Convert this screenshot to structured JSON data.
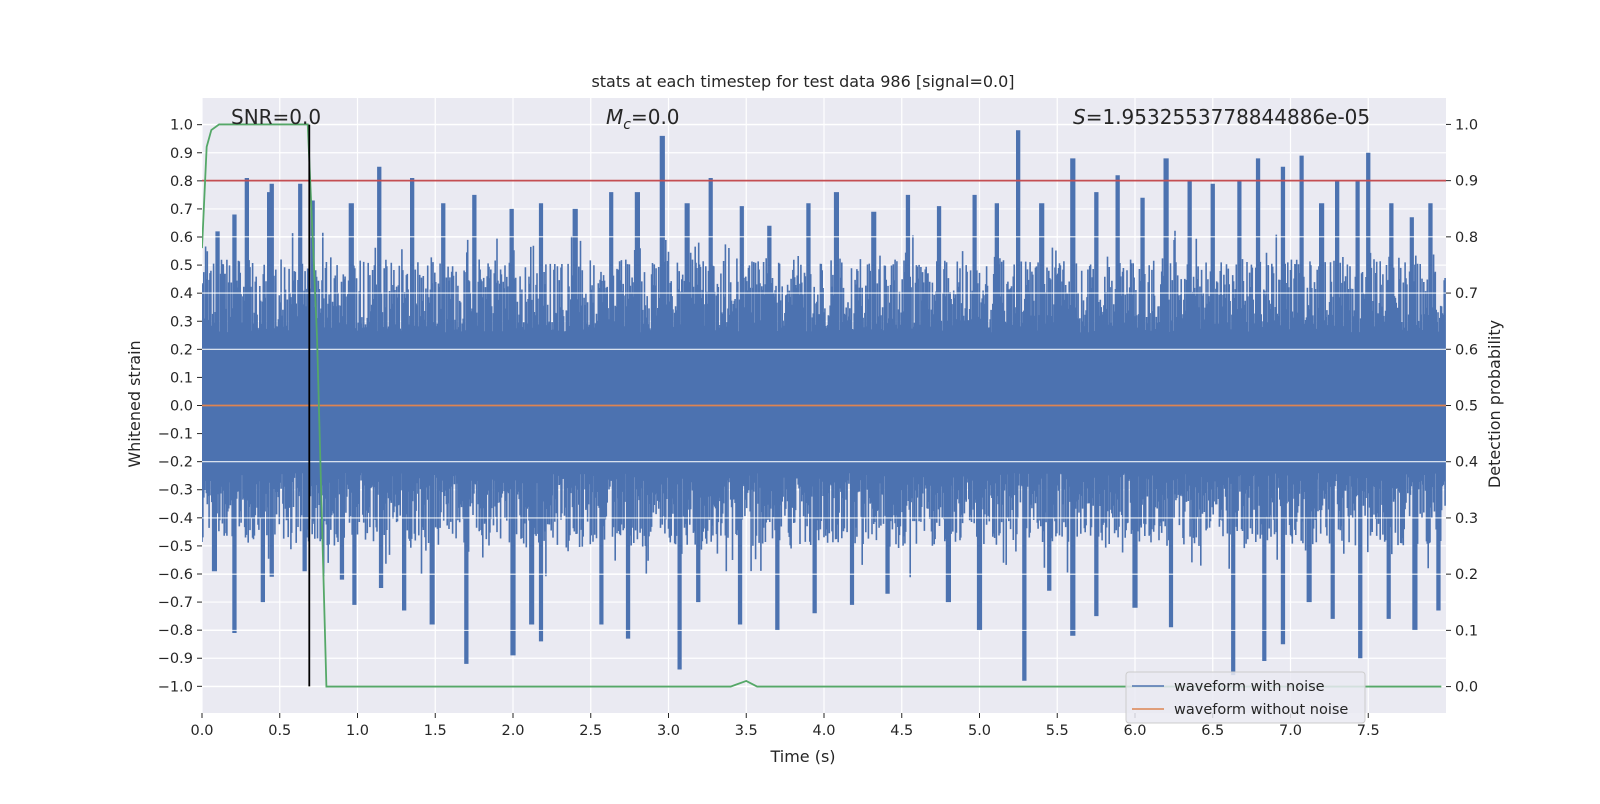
{
  "chart_data": {
    "type": "line",
    "title": "stats at each timestep for test data 986 [signal=0.0]",
    "xlabel": "Time (s)",
    "ylabel": "Whitened strain",
    "y2label": "Detection probability",
    "xlim": [
      0.0,
      8.0
    ],
    "ylim": [
      -1.095,
      1.095
    ],
    "y2lim": [
      -0.047,
      1.047
    ],
    "x_ticks": [
      "0.0",
      "0.5",
      "1.0",
      "1.5",
      "2.0",
      "2.5",
      "3.0",
      "3.5",
      "4.0",
      "4.5",
      "5.0",
      "5.5",
      "6.0",
      "6.5",
      "7.0",
      "7.5"
    ],
    "y_ticks": [
      "1.0",
      "0.9",
      "0.8",
      "0.7",
      "0.6",
      "0.5",
      "0.4",
      "0.3",
      "0.2",
      "0.1",
      "0.0",
      "−0.1",
      "−0.2",
      "−0.3",
      "−0.4",
      "−0.5",
      "−0.6",
      "−0.7",
      "−0.8",
      "−0.9",
      "−1.0"
    ],
    "y2_ticks": [
      "1.0",
      "0.9",
      "0.8",
      "0.7",
      "0.6",
      "0.5",
      "0.4",
      "0.3",
      "0.2",
      "0.1",
      "0.0"
    ],
    "grid": true,
    "legend_placement": "lower-right",
    "annotations": {
      "snr": "SNR=0.0",
      "mc_symbol": "M",
      "mc_sub": "c",
      "mc_value": "=0.0",
      "s_symbol": "S",
      "s_value": "=1.9532553778844886e-05"
    },
    "series": [
      {
        "name": "waveform with noise",
        "color": "#4c72b0",
        "pos_peaks": [
          [
            0.1,
            0.62
          ],
          [
            0.21,
            0.68
          ],
          [
            0.29,
            0.81
          ],
          [
            0.43,
            0.76
          ],
          [
            0.45,
            0.79
          ],
          [
            0.63,
            0.79
          ],
          [
            0.71,
            0.73
          ],
          [
            0.96,
            0.72
          ],
          [
            1.14,
            0.85
          ],
          [
            1.35,
            0.81
          ],
          [
            1.55,
            0.72
          ],
          [
            1.75,
            0.75
          ],
          [
            1.99,
            0.7
          ],
          [
            2.18,
            0.72
          ],
          [
            2.4,
            0.7
          ],
          [
            2.63,
            0.76
          ],
          [
            2.8,
            0.76
          ],
          [
            2.96,
            0.96
          ],
          [
            3.12,
            0.72
          ],
          [
            3.27,
            0.81
          ],
          [
            3.47,
            0.71
          ],
          [
            3.65,
            0.64
          ],
          [
            3.9,
            0.72
          ],
          [
            4.08,
            0.76
          ],
          [
            4.32,
            0.69
          ],
          [
            4.54,
            0.75
          ],
          [
            4.74,
            0.71
          ],
          [
            4.97,
            0.75
          ],
          [
            5.11,
            0.72
          ],
          [
            5.25,
            0.98
          ],
          [
            5.4,
            0.72
          ],
          [
            5.6,
            0.88
          ],
          [
            5.75,
            0.76
          ],
          [
            5.89,
            0.82
          ],
          [
            6.05,
            0.74
          ],
          [
            6.2,
            0.88
          ],
          [
            6.35,
            0.8
          ],
          [
            6.5,
            0.79
          ],
          [
            6.67,
            0.8
          ],
          [
            6.79,
            0.88
          ],
          [
            6.95,
            0.85
          ],
          [
            7.07,
            0.89
          ],
          [
            7.2,
            0.72
          ],
          [
            7.3,
            0.8
          ],
          [
            7.43,
            0.8
          ],
          [
            7.5,
            0.9
          ],
          [
            7.65,
            0.72
          ],
          [
            7.78,
            0.67
          ],
          [
            7.9,
            0.72
          ]
        ],
        "neg_peaks": [
          [
            0.08,
            -0.59
          ],
          [
            0.21,
            -0.81
          ],
          [
            0.39,
            -0.7
          ],
          [
            0.45,
            -0.61
          ],
          [
            0.66,
            -0.59
          ],
          [
            0.9,
            -0.62
          ],
          [
            0.98,
            -0.71
          ],
          [
            1.15,
            -0.65
          ],
          [
            1.3,
            -0.73
          ],
          [
            1.48,
            -0.78
          ],
          [
            1.7,
            -0.92
          ],
          [
            2.0,
            -0.89
          ],
          [
            2.12,
            -0.78
          ],
          [
            2.18,
            -0.84
          ],
          [
            2.57,
            -0.78
          ],
          [
            2.74,
            -0.83
          ],
          [
            3.07,
            -0.94
          ],
          [
            3.19,
            -0.7
          ],
          [
            3.46,
            -0.78
          ],
          [
            3.7,
            -0.8
          ],
          [
            3.94,
            -0.74
          ],
          [
            4.18,
            -0.71
          ],
          [
            4.41,
            -0.67
          ],
          [
            4.8,
            -0.7
          ],
          [
            5.0,
            -0.8
          ],
          [
            5.29,
            -0.98
          ],
          [
            5.45,
            -0.66
          ],
          [
            5.6,
            -0.82
          ],
          [
            5.75,
            -0.75
          ],
          [
            6.0,
            -0.72
          ],
          [
            6.23,
            -0.79
          ],
          [
            6.63,
            -0.96
          ],
          [
            6.83,
            -0.91
          ],
          [
            6.95,
            -0.85
          ],
          [
            7.12,
            -0.7
          ],
          [
            7.27,
            -0.76
          ],
          [
            7.45,
            -0.9
          ],
          [
            7.63,
            -0.76
          ],
          [
            7.8,
            -0.8
          ],
          [
            7.95,
            -0.73
          ]
        ]
      },
      {
        "name": "waveform without noise",
        "color": "#dd8452",
        "x": [
          0.0,
          8.0
        ],
        "values": [
          0.0,
          0.0
        ]
      },
      {
        "name": "",
        "axis": "right",
        "color": "#55a868",
        "x": [
          0.0,
          0.03,
          0.06,
          0.11,
          0.68,
          0.74,
          0.8,
          3.4,
          3.43,
          3.5,
          3.57,
          3.65,
          7.97
        ],
        "values": [
          0.78,
          0.96,
          0.99,
          1.0,
          1.0,
          0.62,
          0.0,
          0.0,
          0.003,
          0.01,
          0.0,
          0.0,
          0.0
        ]
      }
    ],
    "hlines": [
      {
        "axis": "right",
        "value": 0.9,
        "color": "#c44e52"
      }
    ],
    "vlines": [
      {
        "x": 0.69,
        "ymin": -1.0,
        "ymax": 1.0,
        "color": "#000000"
      }
    ]
  }
}
